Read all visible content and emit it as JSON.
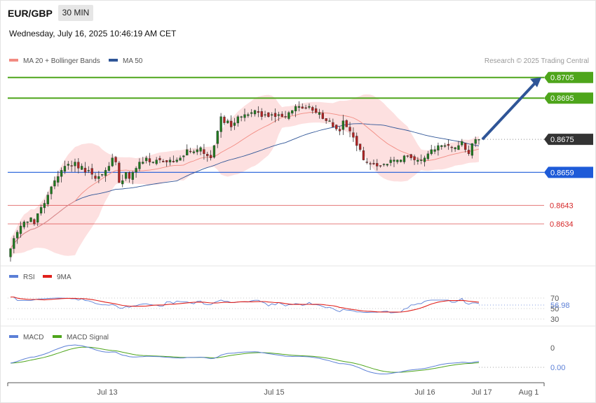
{
  "header": {
    "pair": "EUR/GBP",
    "timeframe": "30 MIN",
    "datetime": "Wednesday, July 16, 2025 10:46:19 AM CET"
  },
  "price_panel": {
    "legend": [
      {
        "label": "MA 20 + Bollinger Bands",
        "color": "#f28b82"
      },
      {
        "label": "MA 50",
        "color": "#2f5597"
      }
    ],
    "credit": "Research © 2025 Trading Central",
    "levels": [
      {
        "label": "0.8705",
        "value": 0.8705,
        "kind": "resistance",
        "color": "#4ea51b"
      },
      {
        "label": "0.8695",
        "value": 0.8695,
        "kind": "resistance",
        "color": "#4ea51b"
      },
      {
        "label": "0.8675",
        "value": 0.8675,
        "kind": "last",
        "color": "#333333"
      },
      {
        "label": "0.8659",
        "value": 0.8659,
        "kind": "pivot",
        "color": "#1e5bd8"
      },
      {
        "label": "0.8643",
        "value": 0.8643,
        "kind": "support",
        "color": "#d62728"
      },
      {
        "label": "0.8634",
        "value": 0.8634,
        "kind": "support",
        "color": "#d62728"
      }
    ],
    "arrow": {
      "direction": "up",
      "color": "#2f5597"
    }
  },
  "rsi_panel": {
    "legend": [
      {
        "label": "RSI",
        "color": "#5b7fd6"
      },
      {
        "label": "9MA",
        "color": "#e0201b"
      }
    ],
    "ticks": [
      "70",
      "50",
      "30"
    ],
    "value_label": "56.98"
  },
  "macd_panel": {
    "legend": [
      {
        "label": "MACD",
        "color": "#5b7fd6"
      },
      {
        "label": "MACD Signal",
        "color": "#4ea51b"
      }
    ],
    "ticks": [
      "0"
    ],
    "value_label": "0.00"
  },
  "x_axis": {
    "ticks": [
      "Jul 13",
      "Jul 15",
      "Jul 16",
      "Jul 17",
      "Aug 1"
    ]
  },
  "chart_data": {
    "type": "candlestick",
    "instrument": "EUR/GBP",
    "timeframe": "30 MIN",
    "y_range": [
      0.8615,
      0.871
    ],
    "close": [
      0.8622,
      0.8627,
      0.863,
      0.8633,
      0.8635,
      0.8635,
      0.8637,
      0.8634,
      0.8639,
      0.8642,
      0.8644,
      0.8648,
      0.8652,
      0.8655,
      0.8657,
      0.866,
      0.8662,
      0.8663,
      0.8662,
      0.8664,
      0.8661,
      0.8662,
      0.8659,
      0.866,
      0.8658,
      0.8656,
      0.8657,
      0.8658,
      0.866,
      0.8662,
      0.8666,
      0.8664,
      0.8654,
      0.8655,
      0.8659,
      0.8656,
      0.8659,
      0.8661,
      0.8664,
      0.8664,
      0.8666,
      0.8664,
      0.8664,
      0.8665,
      0.8665,
      0.8664,
      0.8664,
      0.8665,
      0.8664,
      0.8665,
      0.8666,
      0.8667,
      0.867,
      0.8669,
      0.8669,
      0.867,
      0.8671,
      0.8668,
      0.8667,
      0.8666,
      0.8672,
      0.8679,
      0.8686,
      0.8683,
      0.8684,
      0.8681,
      0.8683,
      0.8686,
      0.8686,
      0.8687,
      0.8687,
      0.8688,
      0.8689,
      0.8688,
      0.8686,
      0.8687,
      0.8686,
      0.8687,
      0.8686,
      0.8687,
      0.8686,
      0.8686,
      0.8688,
      0.8689,
      0.8691,
      0.8691,
      0.869,
      0.869,
      0.8691,
      0.8689,
      0.8688,
      0.8688,
      0.8685,
      0.8684,
      0.8684,
      0.8681,
      0.868,
      0.8679,
      0.8684,
      0.8681,
      0.8679,
      0.8676,
      0.8672,
      0.867,
      0.8665,
      0.8664,
      0.8663,
      0.8663,
      0.8662,
      0.8662,
      0.8663,
      0.8663,
      0.8665,
      0.8665,
      0.8665,
      0.8665,
      0.8667,
      0.8667,
      0.8666,
      0.8665,
      0.8665,
      0.8665,
      0.8666,
      0.8668,
      0.867,
      0.867,
      0.8672,
      0.8672,
      0.8672,
      0.8672,
      0.8671,
      0.8671,
      0.8672,
      0.8674,
      0.867,
      0.8668,
      0.8673,
      0.8675,
      0.8675
    ]
  }
}
